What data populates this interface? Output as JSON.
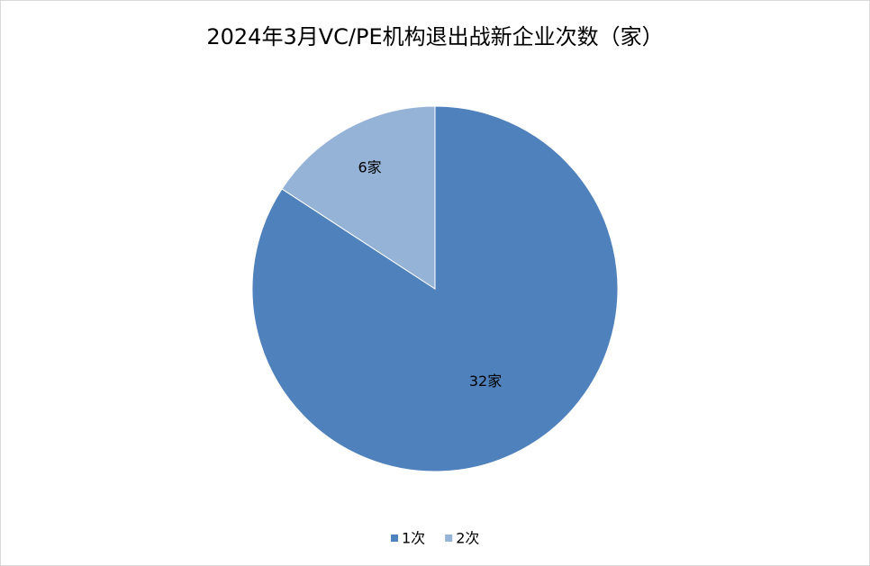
{
  "chart_data": {
    "type": "pie",
    "title": "2024年3月VC/PE机构退出战新企业次数（家）",
    "categories": [
      "1次",
      "2次"
    ],
    "values": [
      32,
      6
    ],
    "value_labels": [
      "32家",
      "6家"
    ],
    "colors": [
      "#4f81bd",
      "#95b3d7"
    ],
    "legend": "bottom"
  }
}
